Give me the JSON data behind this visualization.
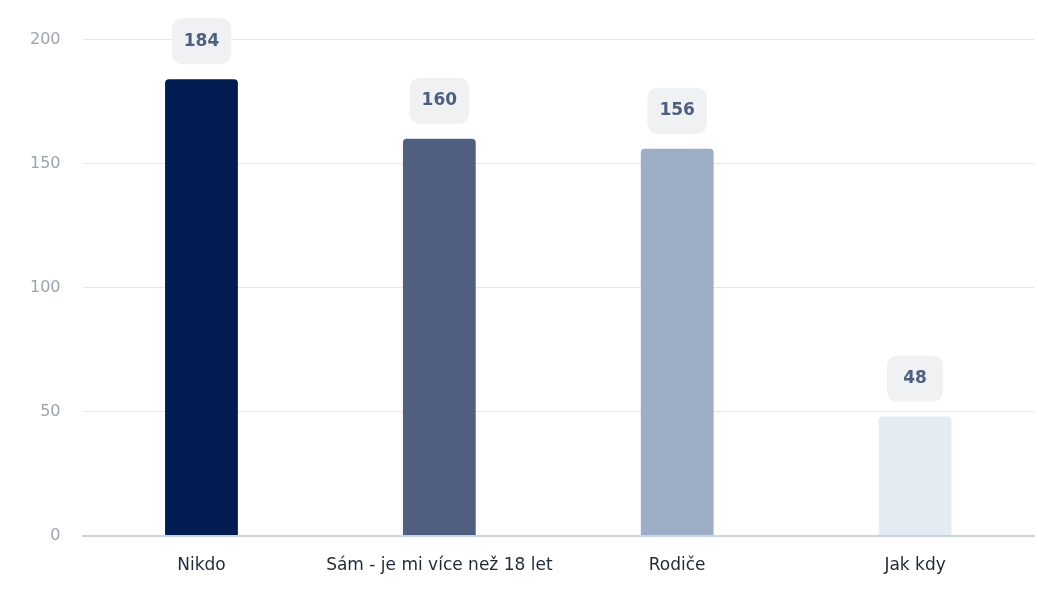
{
  "chart_data": {
    "type": "bar",
    "categories": [
      "Nikdo",
      "Sám - je mi více než 18 let",
      "Rodiče",
      "Jak kdy"
    ],
    "values": [
      184,
      160,
      156,
      48
    ],
    "colors": [
      "#011c50",
      "#505f80",
      "#9eadc6",
      "#e4ebf3"
    ],
    "ylim": [
      0,
      200
    ],
    "yticks": [
      0,
      50,
      100,
      150,
      200
    ],
    "grid": "y",
    "legend": false,
    "data_labels": true
  }
}
